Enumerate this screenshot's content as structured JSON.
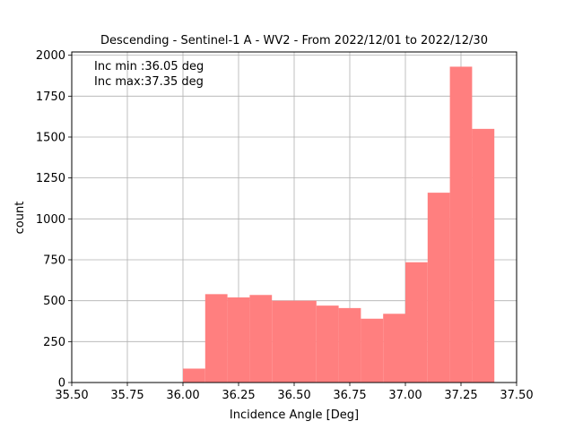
{
  "chart_data": {
    "type": "bar",
    "title": "Descending - Sentinel-1 A - WV2 - From 2022/12/01 to 2022/12/30",
    "xlabel": "Incidence Angle [Deg]",
    "ylabel": "count",
    "xlim": [
      35.5,
      37.5
    ],
    "ylim": [
      0,
      2020
    ],
    "grid": true,
    "bar_color": "#ff7f7f",
    "x_ticks": [
      "35.50",
      "35.75",
      "36.00",
      "36.25",
      "36.50",
      "36.75",
      "37.00",
      "37.25",
      "37.50"
    ],
    "y_ticks": [
      "0",
      "250",
      "500",
      "750",
      "1000",
      "1250",
      "1500",
      "1750",
      "2000"
    ],
    "bins": [
      {
        "x0": 36.0,
        "x1": 36.1,
        "count": 85
      },
      {
        "x0": 36.1,
        "x1": 36.2,
        "count": 540
      },
      {
        "x0": 36.2,
        "x1": 36.3,
        "count": 520
      },
      {
        "x0": 36.3,
        "x1": 36.4,
        "count": 535
      },
      {
        "x0": 36.4,
        "x1": 36.5,
        "count": 500
      },
      {
        "x0": 36.5,
        "x1": 36.6,
        "count": 500
      },
      {
        "x0": 36.6,
        "x1": 36.7,
        "count": 470
      },
      {
        "x0": 36.7,
        "x1": 36.8,
        "count": 455
      },
      {
        "x0": 36.8,
        "x1": 36.9,
        "count": 390
      },
      {
        "x0": 36.9,
        "x1": 37.0,
        "count": 420
      },
      {
        "x0": 37.0,
        "x1": 37.1,
        "count": 735
      },
      {
        "x0": 37.1,
        "x1": 37.2,
        "count": 1160
      },
      {
        "x0": 37.2,
        "x1": 37.3,
        "count": 1930
      },
      {
        "x0": 37.3,
        "x1": 37.4,
        "count": 1550
      }
    ],
    "annotations": {
      "line1": "Inc min :36.05 deg",
      "line2": "Inc max:37.35 deg"
    }
  }
}
